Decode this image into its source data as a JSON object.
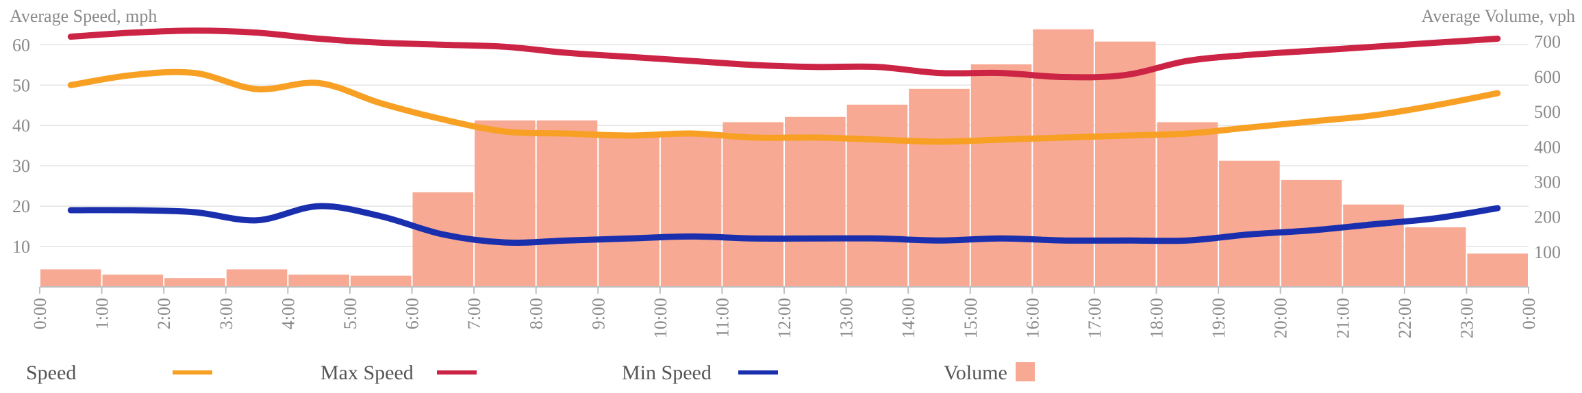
{
  "chart_data": {
    "type": "bar",
    "left_axis_title": "Average Speed, mph",
    "right_axis_title": "Average Volume, vph",
    "left_ticks": [
      10,
      20,
      30,
      40,
      50,
      60
    ],
    "right_ticks": [
      100,
      200,
      300,
      400,
      500,
      600,
      700
    ],
    "left_ylim": [
      0,
      66
    ],
    "right_ylim": [
      0,
      760
    ],
    "x_ticks": [
      "0:00",
      "1:00",
      "2:00",
      "3:00",
      "4:00",
      "5:00",
      "6:00",
      "7:00",
      "8:00",
      "9:00",
      "10:00",
      "11:00",
      "12:00",
      "13:00",
      "14:00",
      "15:00",
      "16:00",
      "17:00",
      "18:00",
      "19:00",
      "20:00",
      "21:00",
      "22:00",
      "23:00",
      "0:00"
    ],
    "hours": [
      0.5,
      1.5,
      2.5,
      3.5,
      4.5,
      5.5,
      6.5,
      7.5,
      8.5,
      9.5,
      10.5,
      11.5,
      12.5,
      13.5,
      14.5,
      15.5,
      16.5,
      17.5,
      18.5,
      19.5,
      20.5,
      21.5,
      22.5,
      23.5
    ],
    "series": [
      {
        "name": "Volume",
        "kind": "bar",
        "axis": "right",
        "color": "#f7a993",
        "values": [
          50,
          35,
          25,
          50,
          35,
          32,
          270,
          475,
          475,
          435,
          435,
          470,
          485,
          520,
          565,
          635,
          735,
          700,
          470,
          360,
          305,
          235,
          170,
          95
        ]
      },
      {
        "name": "Speed",
        "kind": "line",
        "axis": "left",
        "color": "#f7a024",
        "values": [
          50,
          52.5,
          53,
          49,
          50.5,
          45.5,
          41.5,
          38.5,
          38,
          37.5,
          38,
          37,
          37,
          36.5,
          36,
          36.5,
          37,
          37.5,
          38,
          39.5,
          41,
          42.5,
          45,
          48
        ]
      },
      {
        "name": "Max Speed",
        "kind": "line",
        "axis": "left",
        "color": "#cc2445",
        "values": [
          62,
          63,
          63.5,
          63,
          61.5,
          60.5,
          60,
          59.5,
          58,
          57,
          56,
          55,
          54.5,
          54.5,
          53,
          53,
          52,
          52.5,
          56,
          57.5,
          58.5,
          59.5,
          60.5,
          61.5
        ]
      },
      {
        "name": "Min Speed",
        "kind": "line",
        "axis": "left",
        "color": "#1a2fae",
        "values": [
          19,
          19,
          18.5,
          16.5,
          20,
          17.5,
          13,
          11,
          11.5,
          12,
          12.5,
          12,
          12,
          12,
          11.5,
          12,
          11.5,
          11.5,
          11.5,
          13,
          14,
          15.5,
          17,
          19.5
        ]
      }
    ],
    "legend": [
      {
        "label": "Speed",
        "color": "#f7a024",
        "shape": "line"
      },
      {
        "label": "Max Speed",
        "color": "#cc2445",
        "shape": "line"
      },
      {
        "label": "Min Speed",
        "color": "#1a2fae",
        "shape": "line"
      },
      {
        "label": "Volume",
        "color": "#f7a993",
        "shape": "square"
      }
    ],
    "grid": true,
    "legend_position": "bottom"
  }
}
